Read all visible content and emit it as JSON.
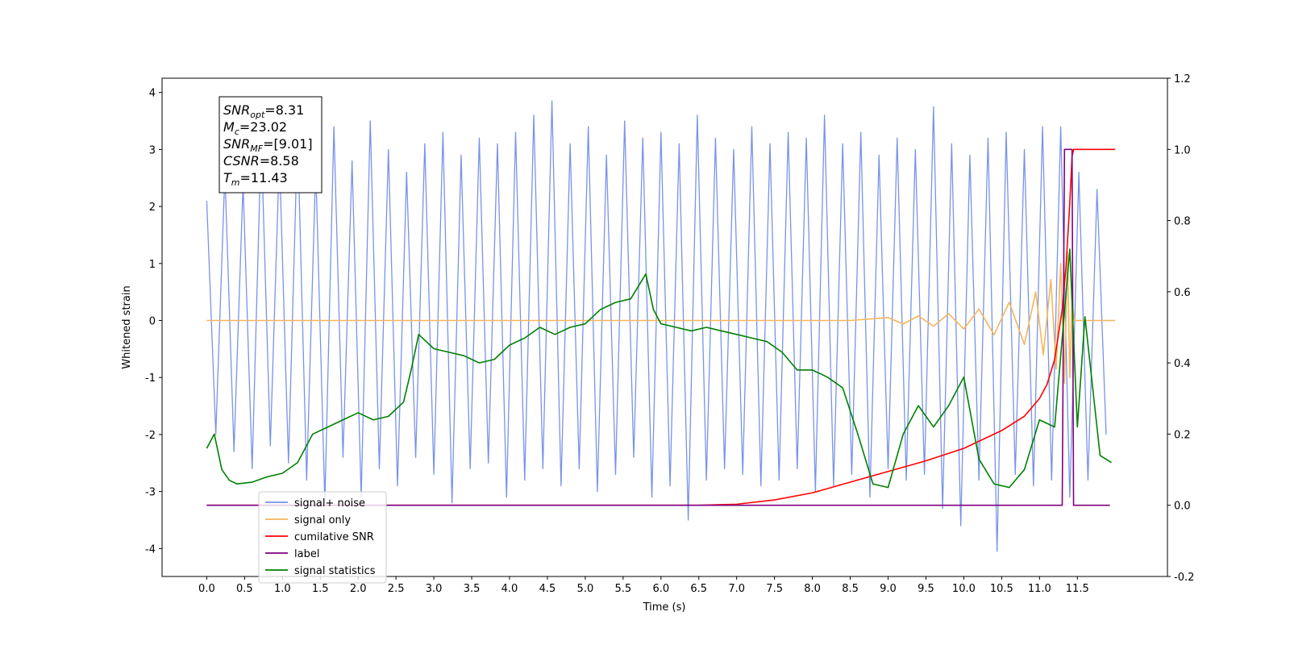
{
  "chart_data": {
    "type": "line",
    "xlabel": "Time (s)",
    "ylabel": "Whitened strain",
    "xlim": [
      -0.59,
      12.69
    ],
    "ylim": [
      -4.49,
      4.25
    ],
    "y2lim": [
      -0.2,
      1.2
    ],
    "xticks": [
      {
        "value": 0,
        "label": "0.0"
      },
      0.5,
      {
        "value": 1,
        "label": "1.0"
      },
      1.5,
      {
        "value": 2,
        "label": "2.0"
      },
      2.5,
      {
        "value": 3,
        "label": "3.0"
      },
      3.5,
      {
        "value": 4,
        "label": "4.0"
      },
      4.5,
      {
        "value": 5,
        "label": "5.0"
      },
      5.5,
      {
        "value": 6,
        "label": "6.0"
      },
      6.5,
      {
        "value": 7,
        "label": "7.0"
      },
      7.5,
      {
        "value": 8,
        "label": "8.0"
      },
      8.5,
      {
        "value": 9,
        "label": "9.0"
      },
      9.5,
      {
        "value": 10,
        "label": "10.0"
      },
      10.5,
      {
        "value": 11,
        "label": "11.0"
      },
      11.5
    ],
    "yticks": [
      -4,
      -3,
      -2,
      -1,
      0,
      1,
      2,
      3,
      4
    ],
    "y2ticks": [
      -0.2,
      {
        "value": 0,
        "label": "0.0"
      },
      0.2,
      0.4,
      0.6,
      0.8,
      {
        "value": 1,
        "label": "1.0"
      },
      1.2
    ],
    "legend": "lower left",
    "annotation": [
      {
        "main": "SNR",
        "sub": "opt",
        "rest": "=8.31"
      },
      {
        "main": "M",
        "sub": "c",
        "rest": "=23.02"
      },
      {
        "main": "SNR",
        "sub": "MF",
        "rest": "=[9.01]"
      },
      {
        "main": "CSNR",
        "rest": "=8.58"
      },
      {
        "main": "T",
        "sub": "m",
        "rest": "=11.43"
      }
    ],
    "series": [
      {
        "name": "signal+ noise",
        "color": "#7893e8",
        "x": [
          0,
          0.12,
          0.24,
          0.36,
          0.48,
          0.6,
          0.72,
          0.84,
          0.96,
          1.08,
          1.2,
          1.32,
          1.44,
          1.56,
          1.68,
          1.8,
          1.92,
          2.04,
          2.16,
          2.28,
          2.4,
          2.52,
          2.64,
          2.76,
          2.88,
          3,
          3.12,
          3.24,
          3.36,
          3.48,
          3.6,
          3.72,
          3.84,
          3.96,
          4.08,
          4.2,
          4.32,
          4.44,
          4.56,
          4.68,
          4.8,
          4.92,
          5.04,
          5.16,
          5.28,
          5.4,
          5.52,
          5.64,
          5.76,
          5.88,
          6,
          6.12,
          6.24,
          6.36,
          6.48,
          6.6,
          6.72,
          6.84,
          6.96,
          7.08,
          7.2,
          7.32,
          7.44,
          7.56,
          7.68,
          7.8,
          7.92,
          8.04,
          8.16,
          8.28,
          8.4,
          8.52,
          8.64,
          8.76,
          8.88,
          9,
          9.12,
          9.24,
          9.36,
          9.48,
          9.6,
          9.72,
          9.84,
          9.96,
          10.08,
          10.2,
          10.32,
          10.44,
          10.56,
          10.68,
          10.8,
          10.92,
          11.04,
          11.16,
          11.28,
          11.4,
          11.52,
          11.64,
          11.76,
          11.88
        ],
        "values": [
          2.1,
          -2.0,
          2.6,
          -2.3,
          2.4,
          -2.6,
          3.2,
          -2.2,
          2.9,
          -2.5,
          3.3,
          -2.8,
          2.7,
          -3.2,
          3.4,
          -2.4,
          2.8,
          -3.1,
          3.5,
          -2.6,
          3.0,
          -2.9,
          2.6,
          -2.4,
          3.1,
          -2.7,
          3.3,
          -3.2,
          2.9,
          -2.6,
          3.2,
          -2.5,
          3.1,
          -3.1,
          3.3,
          -2.8,
          3.6,
          -2.6,
          3.85,
          -2.9,
          3.1,
          -2.6,
          3.4,
          -3.0,
          2.9,
          -2.7,
          3.5,
          -2.4,
          3.2,
          -3.1,
          3.3,
          -2.9,
          3.1,
          -3.5,
          3.6,
          -2.8,
          3.2,
          -2.6,
          3.0,
          -2.7,
          3.4,
          -2.9,
          3.1,
          -2.8,
          3.3,
          -2.6,
          3.2,
          -3.0,
          3.6,
          -2.9,
          3.1,
          -2.7,
          3.3,
          -3.1,
          2.9,
          -2.6,
          3.2,
          -2.8,
          3.0,
          -2.7,
          3.75,
          -3.3,
          3.1,
          -3.6,
          2.9,
          -2.8,
          3.2,
          -4.05,
          3.3,
          -2.7,
          3.0,
          -2.9,
          3.4,
          -2.8,
          3.4,
          -3.1,
          2.6,
          -2.8,
          2.3,
          -2.0
        ]
      },
      {
        "name": "signal only",
        "color": "#f5b55a",
        "x": [
          0,
          8.5,
          9.0,
          9.2,
          9.4,
          9.6,
          9.8,
          10.0,
          10.2,
          10.4,
          10.6,
          10.8,
          10.95,
          11.05,
          11.15,
          11.22,
          11.28,
          11.33,
          11.37,
          11.4,
          11.43,
          11.46,
          12.0
        ],
        "values": [
          0,
          0,
          0.05,
          -0.06,
          0.08,
          -0.1,
          0.12,
          -0.15,
          0.2,
          -0.25,
          0.32,
          -0.42,
          0.5,
          -0.6,
          0.72,
          -0.85,
          1.0,
          -1.1,
          1.2,
          -1.0,
          0.3,
          0,
          0
        ]
      },
      {
        "name": "cumilative SNR",
        "color": "#ff0000",
        "axis": "y2",
        "x": [
          0,
          6.5,
          7.0,
          7.5,
          8.0,
          8.5,
          9.0,
          9.5,
          10.0,
          10.5,
          10.8,
          11.0,
          11.1,
          11.2,
          11.3,
          11.35,
          11.4,
          11.43,
          11.45,
          12.0
        ],
        "values": [
          0,
          0,
          0.003,
          0.015,
          0.035,
          0.065,
          0.095,
          0.125,
          0.16,
          0.21,
          0.25,
          0.3,
          0.34,
          0.41,
          0.55,
          0.67,
          0.85,
          0.98,
          1.0,
          1.0
        ]
      },
      {
        "name": "label",
        "color": "#800080",
        "axis": "y2",
        "x": [
          0,
          11.3,
          11.33,
          11.43,
          11.45,
          11.93
        ],
        "values": [
          0,
          0,
          1.0,
          1.0,
          0,
          0
        ]
      },
      {
        "name": "signal statistics",
        "color": "#008000",
        "axis": "y2",
        "x": [
          0,
          0.1,
          0.2,
          0.3,
          0.4,
          0.6,
          0.8,
          1.0,
          1.2,
          1.4,
          1.6,
          1.8,
          2.0,
          2.2,
          2.4,
          2.6,
          2.7,
          2.8,
          2.9,
          3.0,
          3.2,
          3.4,
          3.6,
          3.8,
          4.0,
          4.2,
          4.4,
          4.6,
          4.8,
          5.0,
          5.2,
          5.4,
          5.6,
          5.8,
          5.9,
          6.0,
          6.2,
          6.4,
          6.6,
          6.8,
          7.0,
          7.2,
          7.4,
          7.6,
          7.8,
          8.0,
          8.2,
          8.4,
          8.6,
          8.8,
          9.0,
          9.2,
          9.4,
          9.6,
          9.8,
          10.0,
          10.2,
          10.4,
          10.6,
          10.8,
          11.0,
          11.2,
          11.4,
          11.5,
          11.6,
          11.8,
          11.95
        ],
        "values": [
          0.16,
          0.2,
          0.1,
          0.07,
          0.06,
          0.065,
          0.08,
          0.09,
          0.12,
          0.2,
          0.22,
          0.24,
          0.26,
          0.24,
          0.25,
          0.29,
          0.38,
          0.48,
          0.46,
          0.44,
          0.43,
          0.42,
          0.4,
          0.41,
          0.45,
          0.47,
          0.5,
          0.48,
          0.5,
          0.51,
          0.55,
          0.57,
          0.58,
          0.65,
          0.55,
          0.51,
          0.5,
          0.49,
          0.5,
          0.49,
          0.48,
          0.47,
          0.46,
          0.43,
          0.38,
          0.38,
          0.36,
          0.33,
          0.2,
          0.06,
          0.05,
          0.2,
          0.28,
          0.22,
          0.28,
          0.36,
          0.13,
          0.06,
          0.05,
          0.1,
          0.24,
          0.22,
          0.72,
          0.22,
          0.53,
          0.14,
          0.12
        ]
      }
    ]
  }
}
